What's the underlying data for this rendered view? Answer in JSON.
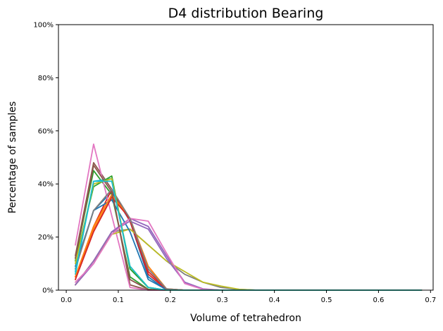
{
  "chart_data": {
    "type": "line",
    "title": "D4 distribution Bearing",
    "xlabel": "Volume of tetrahedron",
    "ylabel": "Percentage of samples",
    "xlim": [
      -0.015,
      0.705
    ],
    "ylim": [
      0,
      100
    ],
    "x_ticks": [
      0.0,
      0.1,
      0.2,
      0.3,
      0.4,
      0.5,
      0.6,
      0.7
    ],
    "x_tick_labels": [
      "0.0",
      "0.1",
      "0.2",
      "0.3",
      "0.4",
      "0.5",
      "0.6",
      "0.7"
    ],
    "y_ticks": [
      0,
      20,
      40,
      60,
      80,
      100
    ],
    "y_tick_labels": [
      "0%",
      "20%",
      "40%",
      "60%",
      "80%",
      "100%"
    ],
    "grid": false,
    "x": [
      0.0175,
      0.0525,
      0.0875,
      0.1225,
      0.1575,
      0.1925,
      0.2275,
      0.2625,
      0.2975,
      0.3325,
      0.3675,
      0.4025,
      0.4375,
      0.4725,
      0.5075,
      0.5425,
      0.5775,
      0.6125,
      0.6475,
      0.6825
    ],
    "series": [
      {
        "color": "#1f77b4",
        "values": [
          8,
          30,
          37,
          26,
          5,
          0,
          0,
          0,
          0,
          0,
          0,
          0,
          0,
          0,
          0,
          0,
          0,
          0,
          0,
          0
        ]
      },
      {
        "color": "#ff7f0e",
        "values": [
          4,
          23,
          35,
          27,
          8,
          0.5,
          0,
          0,
          0,
          0,
          0,
          0,
          0,
          0,
          0,
          0,
          0,
          0,
          0,
          0
        ]
      },
      {
        "color": "#2ca02c",
        "values": [
          12,
          45,
          36,
          5,
          0.3,
          0,
          0,
          0,
          0,
          0,
          0,
          0,
          0,
          0,
          0,
          0,
          0,
          0,
          0,
          0
        ]
      },
      {
        "color": "#d62728",
        "values": [
          5,
          24,
          38,
          26,
          6,
          0.3,
          0,
          0,
          0,
          0,
          0,
          0,
          0,
          0,
          0,
          0,
          0,
          0,
          0,
          0
        ]
      },
      {
        "color": "#9467bd",
        "values": [
          2,
          10,
          22,
          27,
          24,
          13,
          3,
          0.5,
          0,
          0,
          0,
          0,
          0,
          0,
          0,
          0,
          0,
          0,
          0,
          0
        ]
      },
      {
        "color": "#8c564b",
        "values": [
          13,
          48,
          38,
          2,
          0,
          0,
          0,
          0,
          0,
          0,
          0,
          0,
          0,
          0,
          0,
          0,
          0,
          0,
          0,
          0
        ]
      },
      {
        "color": "#e377c2",
        "values": [
          17,
          55,
          28,
          1,
          0,
          0,
          0,
          0,
          0,
          0,
          0,
          0,
          0,
          0,
          0,
          0,
          0,
          0,
          0,
          0
        ]
      },
      {
        "color": "#7f7f7f",
        "values": [
          2,
          11,
          22,
          23,
          17,
          11,
          6,
          3,
          1,
          0.3,
          0,
          0,
          0,
          0,
          0,
          0,
          0,
          0,
          0,
          0
        ]
      },
      {
        "color": "#bcbd22",
        "values": [
          2,
          11,
          21,
          23,
          17,
          11,
          7,
          3,
          1.5,
          0.3,
          0,
          0,
          0,
          0,
          0,
          0,
          0,
          0,
          0,
          0
        ]
      },
      {
        "color": "#17becf",
        "values": [
          6,
          41,
          42,
          8,
          1,
          0,
          0,
          0,
          0,
          0,
          0,
          0,
          0,
          0,
          0,
          0,
          0,
          0,
          0,
          0
        ]
      },
      {
        "color": "#1f77b4",
        "values": [
          9,
          30,
          34,
          22,
          4,
          0.2,
          0,
          0,
          0,
          0,
          0,
          0,
          0,
          0,
          0,
          0,
          0,
          0,
          0,
          0
        ]
      },
      {
        "color": "#ff7f0e",
        "values": [
          5,
          24,
          36,
          27,
          9,
          0.5,
          0,
          0,
          0,
          0,
          0,
          0,
          0,
          0,
          0,
          0,
          0,
          0,
          0,
          0
        ]
      },
      {
        "color": "#2ca02c",
        "values": [
          11,
          39,
          43,
          8,
          1,
          0,
          0,
          0,
          0,
          0,
          0,
          0,
          0,
          0,
          0,
          0,
          0,
          0,
          0,
          0
        ]
      },
      {
        "color": "#d62728",
        "values": [
          4,
          22,
          35,
          27,
          7,
          0.4,
          0,
          0,
          0,
          0,
          0,
          0,
          0,
          0,
          0,
          0,
          0,
          0,
          0,
          0
        ]
      },
      {
        "color": "#9467bd",
        "values": [
          2,
          11,
          22,
          26,
          23,
          12,
          3,
          0.4,
          0,
          0,
          0,
          0,
          0,
          0,
          0,
          0,
          0,
          0,
          0,
          0
        ]
      },
      {
        "color": "#8c564b",
        "values": [
          12,
          47,
          37,
          4,
          0.2,
          0,
          0,
          0,
          0,
          0,
          0,
          0,
          0,
          0,
          0,
          0,
          0,
          0,
          0,
          0
        ]
      },
      {
        "color": "#e377c2",
        "values": [
          3,
          10,
          21,
          27,
          26,
          14,
          2.5,
          0.3,
          0,
          0,
          0,
          0,
          0,
          0,
          0,
          0,
          0,
          0,
          0,
          0
        ]
      },
      {
        "color": "#7f7f7f",
        "values": [
          8,
          30,
          38,
          27,
          8,
          0.5,
          0,
          0,
          0,
          0,
          0,
          0,
          0,
          0,
          0,
          0,
          0,
          0,
          0,
          0
        ]
      },
      {
        "color": "#bcbd22",
        "values": [
          10,
          40,
          42,
          9,
          1,
          0,
          0,
          0,
          0,
          0,
          0,
          0,
          0,
          0,
          0,
          0,
          0,
          0,
          0,
          0
        ]
      },
      {
        "color": "#17becf",
        "values": [
          7,
          41,
          41,
          9,
          1,
          0,
          0,
          0,
          0,
          0,
          0,
          0,
          0,
          0,
          0,
          0,
          0,
          0,
          0,
          0
        ]
      }
    ]
  }
}
